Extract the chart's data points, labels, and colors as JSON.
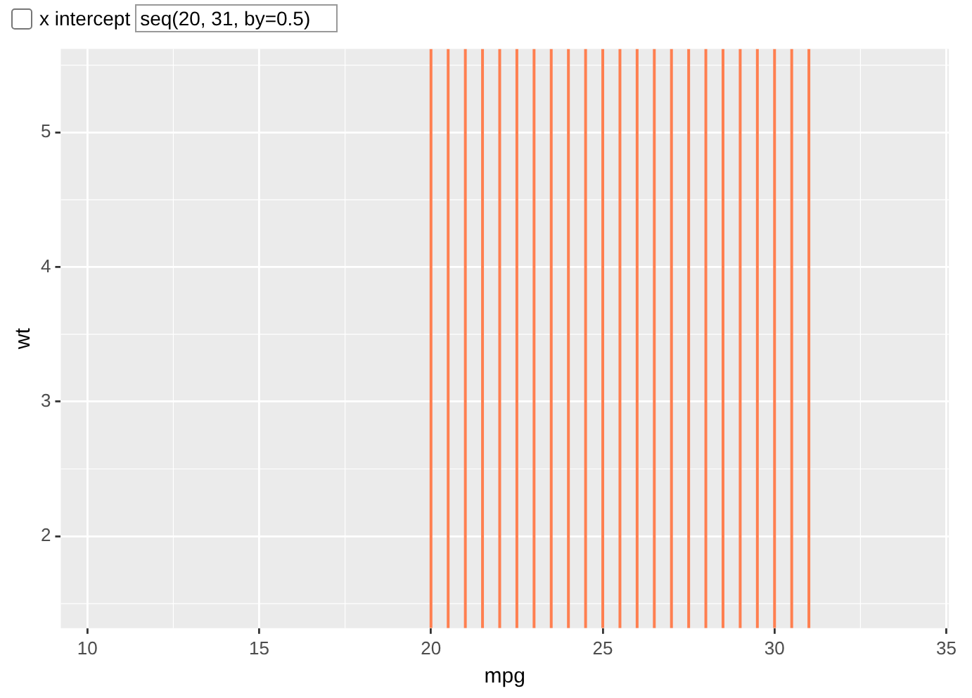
{
  "chart_data": {
    "type": "scatter",
    "xlabel": "mpg",
    "ylabel": "wt",
    "xlim": [
      9.225,
      35.075
    ],
    "ylim": [
      1.317,
      5.62
    ],
    "xticks": [
      10,
      15,
      20,
      25,
      30,
      35
    ],
    "yticks": [
      2,
      3,
      4,
      5
    ],
    "grid": true,
    "ref_lines": [
      {
        "axis": "x",
        "value": 20,
        "color": "#ff7f50"
      },
      {
        "axis": "x",
        "value": 20.5,
        "color": "#ff7f50"
      },
      {
        "axis": "x",
        "value": 21,
        "color": "#ff7f50"
      },
      {
        "axis": "x",
        "value": 21.5,
        "color": "#ff7f50"
      },
      {
        "axis": "x",
        "value": 22,
        "color": "#ff7f50"
      },
      {
        "axis": "x",
        "value": 22.5,
        "color": "#ff7f50"
      },
      {
        "axis": "x",
        "value": 23,
        "color": "#ff7f50"
      },
      {
        "axis": "x",
        "value": 23.5,
        "color": "#ff7f50"
      },
      {
        "axis": "x",
        "value": 24,
        "color": "#ff7f50"
      },
      {
        "axis": "x",
        "value": 24.5,
        "color": "#ff7f50"
      },
      {
        "axis": "x",
        "value": 25,
        "color": "#ff7f50"
      },
      {
        "axis": "x",
        "value": 25.5,
        "color": "#ff7f50"
      },
      {
        "axis": "x",
        "value": 26,
        "color": "#ff7f50"
      },
      {
        "axis": "x",
        "value": 26.5,
        "color": "#ff7f50"
      },
      {
        "axis": "x",
        "value": 27,
        "color": "#ff7f50"
      },
      {
        "axis": "x",
        "value": 27.5,
        "color": "#ff7f50"
      },
      {
        "axis": "x",
        "value": 28,
        "color": "#ff7f50"
      },
      {
        "axis": "x",
        "value": 28.5,
        "color": "#ff7f50"
      },
      {
        "axis": "x",
        "value": 29,
        "color": "#ff7f50"
      },
      {
        "axis": "x",
        "value": 29.5,
        "color": "#ff7f50"
      },
      {
        "axis": "x",
        "value": 30,
        "color": "#ff7f50"
      },
      {
        "axis": "x",
        "value": 30.5,
        "color": "#ff7f50"
      },
      {
        "axis": "x",
        "value": 31,
        "color": "#ff7f50"
      }
    ],
    "annotations": [
      "x intercept",
      "seq(20, 31, by=0.5)"
    ]
  }
}
